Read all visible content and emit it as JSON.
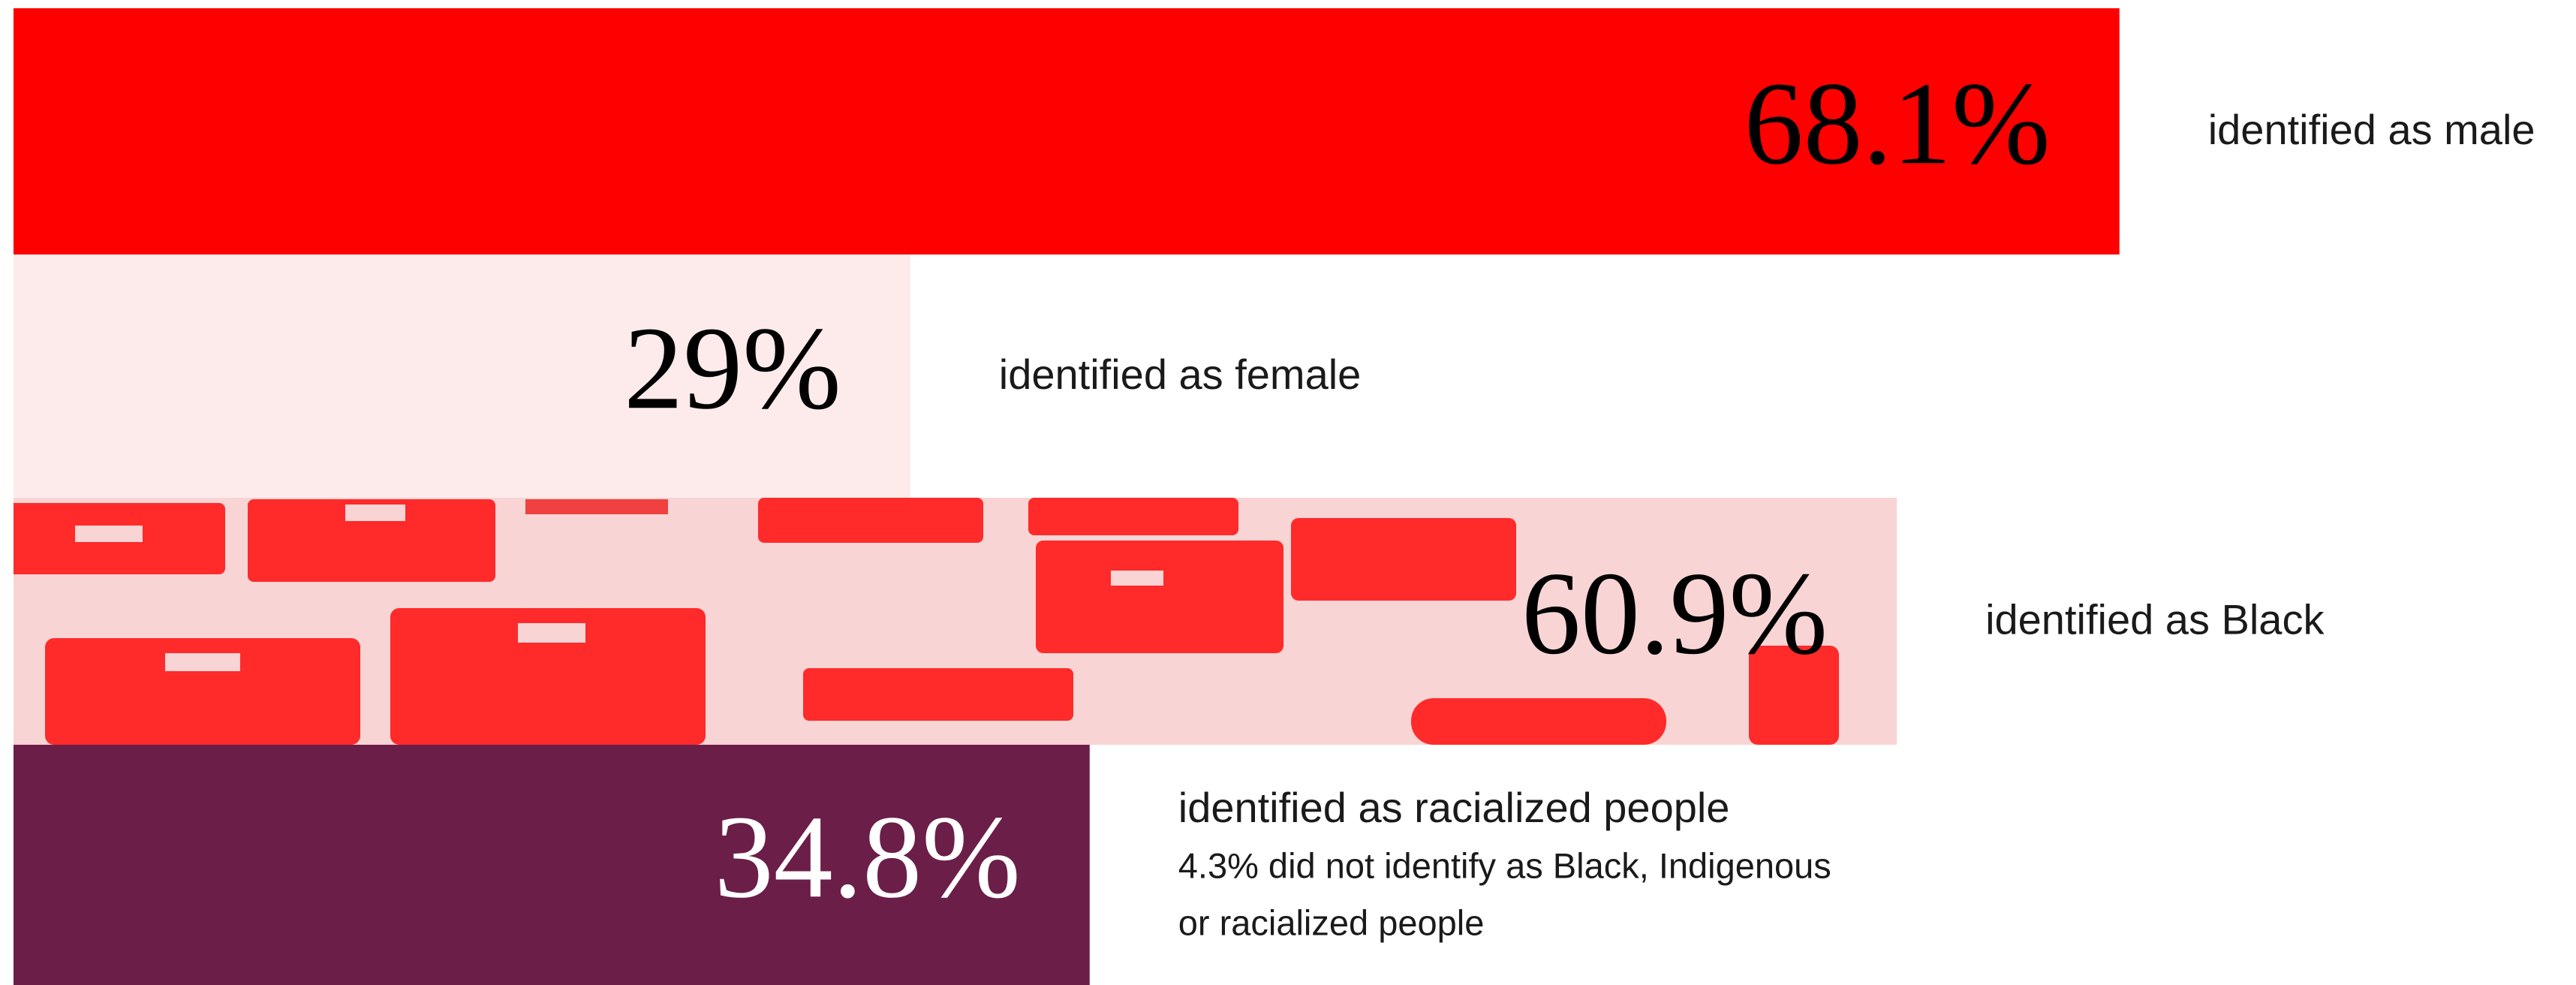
{
  "chart_data": {
    "type": "bar",
    "orientation": "horizontal",
    "categories": [
      "identified as male",
      "identified as female",
      "identified as Black",
      "identified as racialized people"
    ],
    "values": [
      68.1,
      29,
      60.9,
      34.8
    ],
    "value_labels": [
      "68.1%",
      "29%",
      "60.9%",
      "34.8%"
    ],
    "colors": [
      "#ff0000",
      "#fcebea",
      "#f8d4d4",
      "#6b1e48"
    ],
    "value_label_colors": [
      "#000000",
      "#000000",
      "#000000",
      "#ffffff"
    ],
    "annotations": [
      "4.3% did not identify as Black, Indigenous",
      "or racialized people"
    ]
  }
}
